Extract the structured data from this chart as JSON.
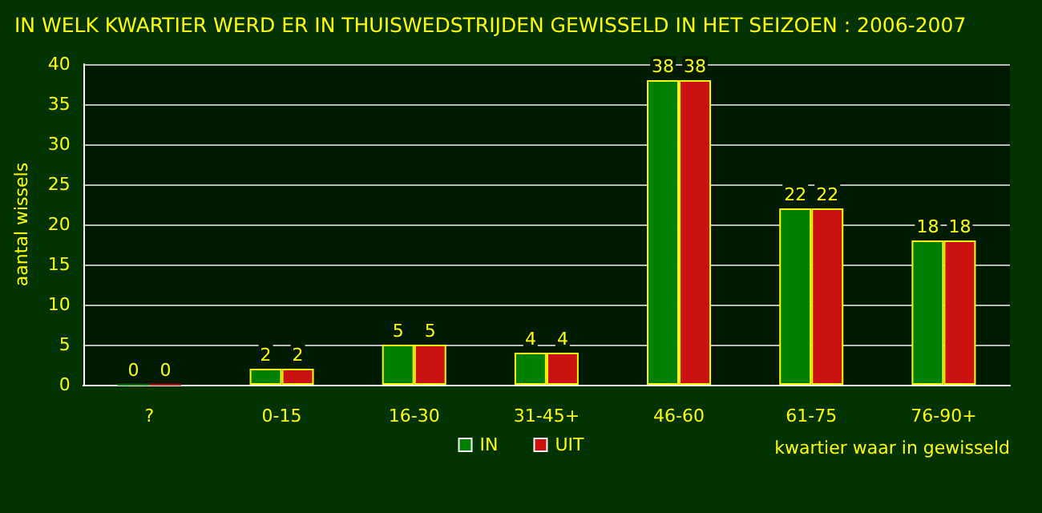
{
  "chart_data": {
    "type": "bar",
    "title": "IN WELK KWARTIER WERD ER IN THUISWEDSTRIJDEN GEWISSELD IN HET SEIZOEN : 2006-2007",
    "xlabel": "kwartier waar in gewisseld",
    "ylabel": "aantal wissels",
    "categories": [
      "?",
      "0-15",
      "16-30",
      "31-45+",
      "46-60",
      "61-75",
      "76-90+"
    ],
    "series": [
      {
        "name": "IN",
        "color": "#008000",
        "values": [
          0,
          2,
          5,
          4,
          38,
          22,
          18
        ]
      },
      {
        "name": "UIT",
        "color": "#cc1111",
        "values": [
          0,
          2,
          5,
          4,
          38,
          22,
          18
        ]
      }
    ],
    "ylim": [
      0,
      40
    ],
    "yticks": [
      0,
      5,
      10,
      15,
      20,
      25,
      30,
      35,
      40
    ],
    "grid": "y",
    "legend": "bottom",
    "data_labels": true
  }
}
